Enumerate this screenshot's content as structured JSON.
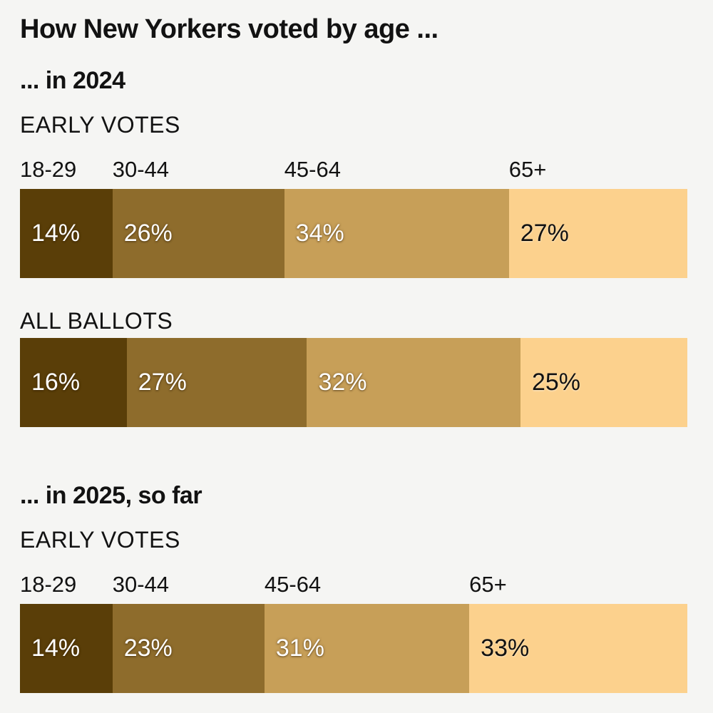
{
  "page": {
    "background_color": "#f5f5f3",
    "text_color": "#121212"
  },
  "chart_data": {
    "type": "bar",
    "variant": "horizontal-stacked-percent",
    "title": "How New Yorkers voted by age ...",
    "categories": [
      "18-29",
      "30-44",
      "45-64",
      "65+"
    ],
    "colors": [
      "#5a3e08",
      "#8e6c2c",
      "#c79f58",
      "#fcd18d"
    ],
    "value_label_colors": [
      "#ffffff",
      "#ffffff",
      "#ffffff",
      "#121212"
    ],
    "value_suffix": "%",
    "legend_position": "category labels above first bar of each group",
    "grid": false,
    "groups": [
      {
        "heading": "... in 2024",
        "rows": [
          {
            "label": "EARLY VOTES",
            "show_category_labels": true,
            "values": [
              14,
              26,
              34,
              27
            ],
            "labels": [
              "14%",
              "26%",
              "34%",
              "27%"
            ]
          },
          {
            "label": "ALL BALLOTS",
            "show_category_labels": false,
            "values": [
              16,
              27,
              32,
              25
            ],
            "labels": [
              "16%",
              "27%",
              "32%",
              "25%"
            ]
          }
        ]
      },
      {
        "heading": "... in 2025, so far",
        "rows": [
          {
            "label": "EARLY VOTES",
            "show_category_labels": true,
            "values": [
              14,
              23,
              31,
              33
            ],
            "labels": [
              "14%",
              "23%",
              "31%",
              "33%"
            ]
          }
        ]
      }
    ]
  }
}
